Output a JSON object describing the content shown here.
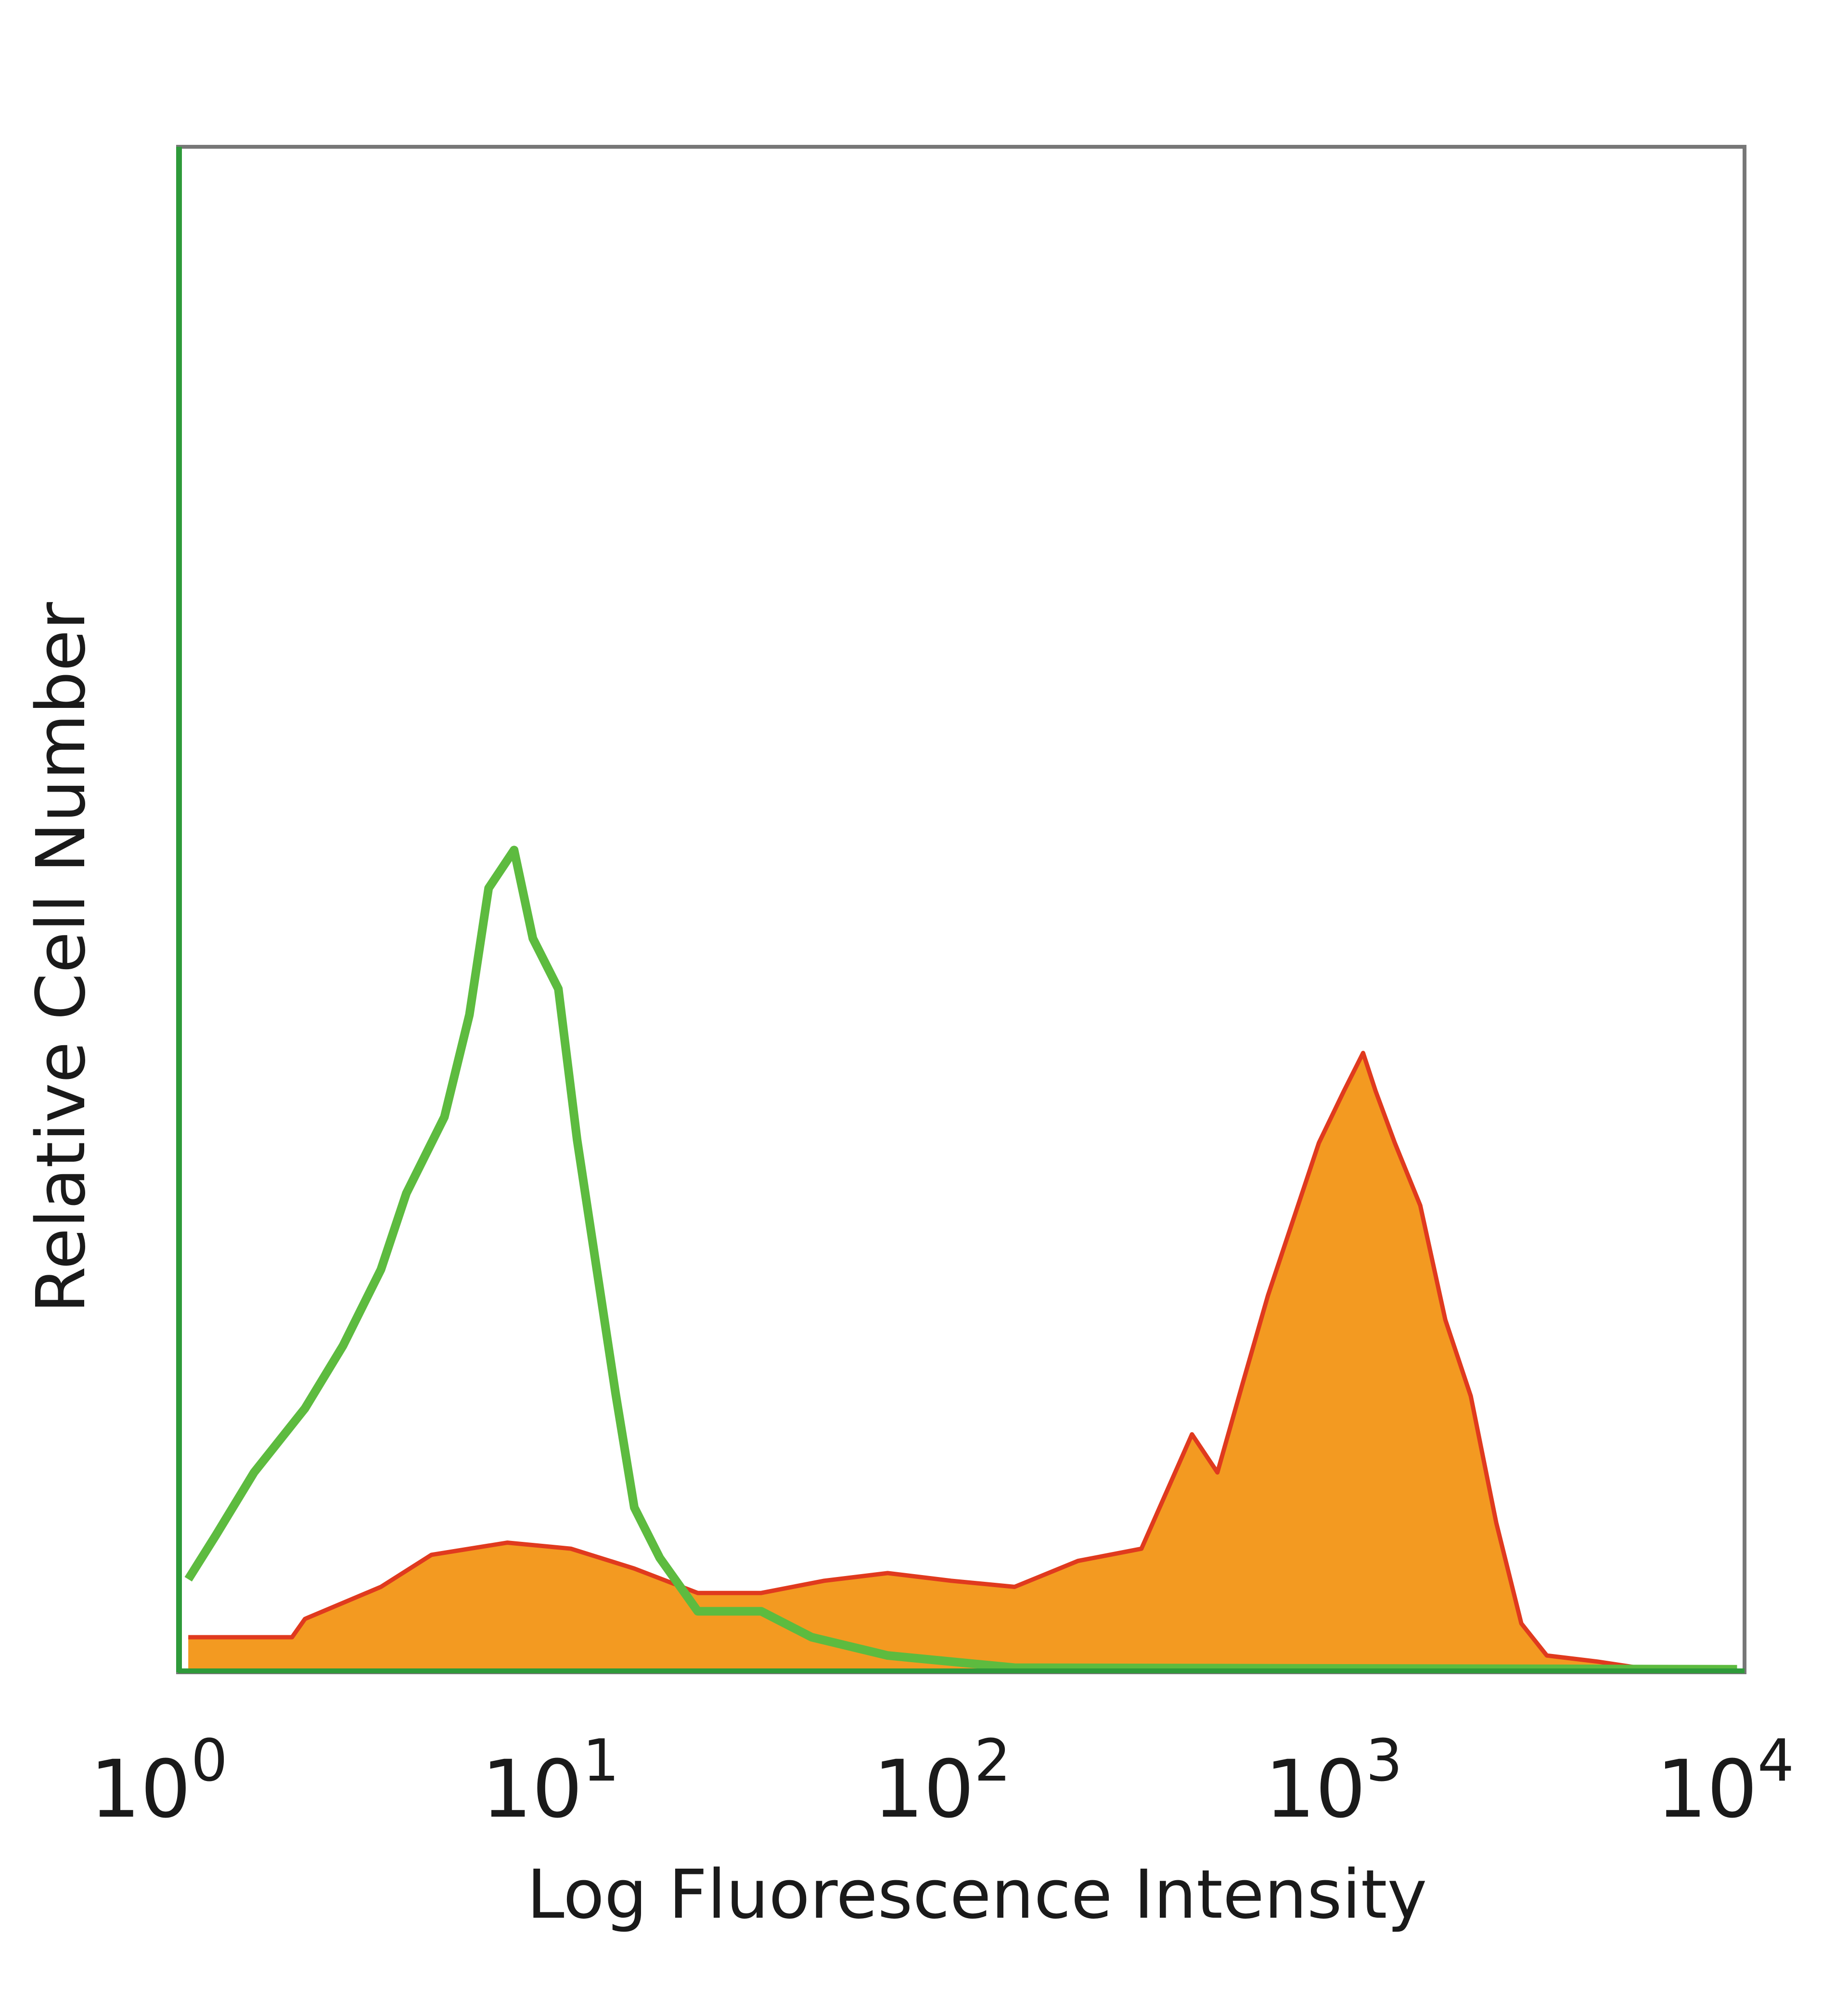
{
  "chart_data": {
    "type": "area",
    "title": "",
    "xlabel": "Log Fluorescence Intensity",
    "ylabel": "Relative Cell Number",
    "x_scale": "log",
    "xlim": [
      1,
      10000
    ],
    "ylim": [
      0,
      100
    ],
    "grid": false,
    "x_ticks": [
      {
        "base": "10",
        "exp": "0"
      },
      {
        "base": "10",
        "exp": "1"
      },
      {
        "base": "10",
        "exp": "2"
      },
      {
        "base": "10",
        "exp": "3"
      },
      {
        "base": "10",
        "exp": "4"
      }
    ],
    "colors": {
      "control_line": "#5dbb3f",
      "stained_line": "#e03a1e",
      "stained_fill": "#f39a21",
      "axis_left": "#2e9a3a",
      "frame": "#777777"
    },
    "series": [
      {
        "style": "line",
        "color": "#5dbb3f",
        "log10_x": [
          0.026,
          0.097,
          0.194,
          0.324,
          0.421,
          0.518,
          0.583,
          0.68,
          0.744,
          0.793,
          0.858,
          0.906,
          0.971,
          1.019,
          1.068,
          1.117,
          1.165,
          1.23,
          1.327,
          1.489,
          1.618,
          1.812,
          1.974,
          2.136,
          3.981
        ],
        "y": [
          6.1,
          9.0,
          13.1,
          17.3,
          21.4,
          26.4,
          31.4,
          36.4,
          43.1,
          51.4,
          53.9,
          48.1,
          44.8,
          34.9,
          26.6,
          18.3,
          10.8,
          7.5,
          4.0,
          4.0,
          2.3,
          1.1,
          0.7,
          0.3,
          0.2
        ]
      },
      {
        "style": "filled",
        "color": "#f39a21",
        "edge_color": "#e03a1e",
        "log10_x": [
          0.026,
          0.291,
          0.324,
          0.518,
          0.647,
          0.841,
          1.003,
          1.165,
          1.327,
          1.489,
          1.65,
          1.812,
          1.974,
          2.136,
          2.298,
          2.46,
          2.589,
          2.654,
          2.718,
          2.783,
          2.848,
          2.913,
          2.977,
          3.026,
          3.058,
          3.107,
          3.172,
          3.236,
          3.301,
          3.366,
          3.43,
          3.495,
          3.625,
          3.754,
          3.981
        ],
        "y": [
          2.3,
          2.3,
          3.5,
          5.6,
          7.7,
          8.5,
          8.1,
          6.8,
          5.2,
          5.2,
          6.0,
          6.5,
          6.0,
          5.6,
          7.3,
          8.1,
          15.6,
          13.1,
          18.9,
          24.7,
          29.7,
          34.7,
          38.1,
          40.6,
          38.1,
          34.7,
          30.6,
          23.1,
          18.1,
          9.8,
          3.2,
          1.1,
          0.7,
          0.2,
          0.2
        ]
      }
    ]
  }
}
